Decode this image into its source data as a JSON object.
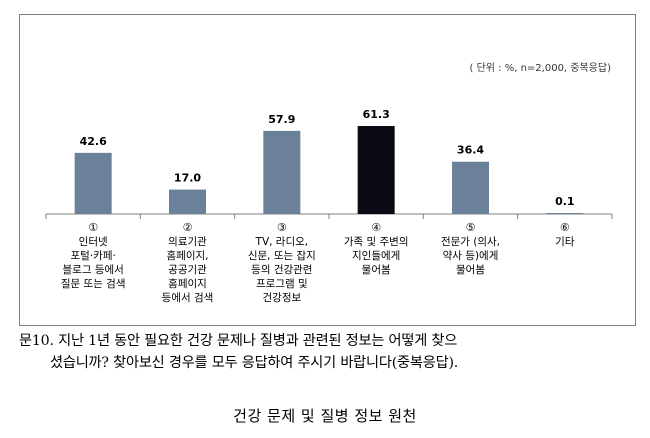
{
  "unit_note": "( 단위 : %, n=2,000, 중복응답)",
  "question_line1": "문10. 지난 1년 동안 필요한 건강 문제나 질병과 관련된 정보는 어떻게 찾으",
  "question_line2": "셨습니까? 찾아보신 경우를 모두 응답하여 주시기 바랍니다(중복응답).",
  "caption": "건강 문제 및 질병 정보 원천",
  "colors": {
    "bar": "#6b8199",
    "bar_highlight": "#0a0a14",
    "axis": "#808080"
  },
  "chart_data": {
    "type": "bar",
    "categories": [
      {
        "number": "①",
        "label_lines": [
          "인터넷",
          "포털·카페·",
          "블로그 등에서",
          "질문 또는 검색"
        ]
      },
      {
        "number": "②",
        "label_lines": [
          "의료기관",
          "홈페이지,",
          "공공기관",
          "홈페이지",
          "등에서 검색"
        ]
      },
      {
        "number": "③",
        "label_lines": [
          "TV, 라디오,",
          "신문, 또는 잡지",
          "등의 건강관련",
          "프로그램 및",
          "건강정보"
        ]
      },
      {
        "number": "④",
        "label_lines": [
          "가족 및 주변의",
          "지인들에게",
          "물어봄"
        ]
      },
      {
        "number": "⑤",
        "label_lines": [
          "전문가 (의사,",
          "약사 등)에게",
          "물어봄"
        ]
      },
      {
        "number": "⑥",
        "label_lines": [
          "기타"
        ]
      }
    ],
    "values": [
      42.6,
      17.0,
      57.9,
      61.3,
      36.4,
      0.1
    ],
    "value_labels": [
      "42.6",
      "17.0",
      "57.9",
      "61.3",
      "36.4",
      "0.1"
    ],
    "highlight_index": 3,
    "ylim": [
      0,
      61.3
    ],
    "grid": false,
    "legend": false
  }
}
